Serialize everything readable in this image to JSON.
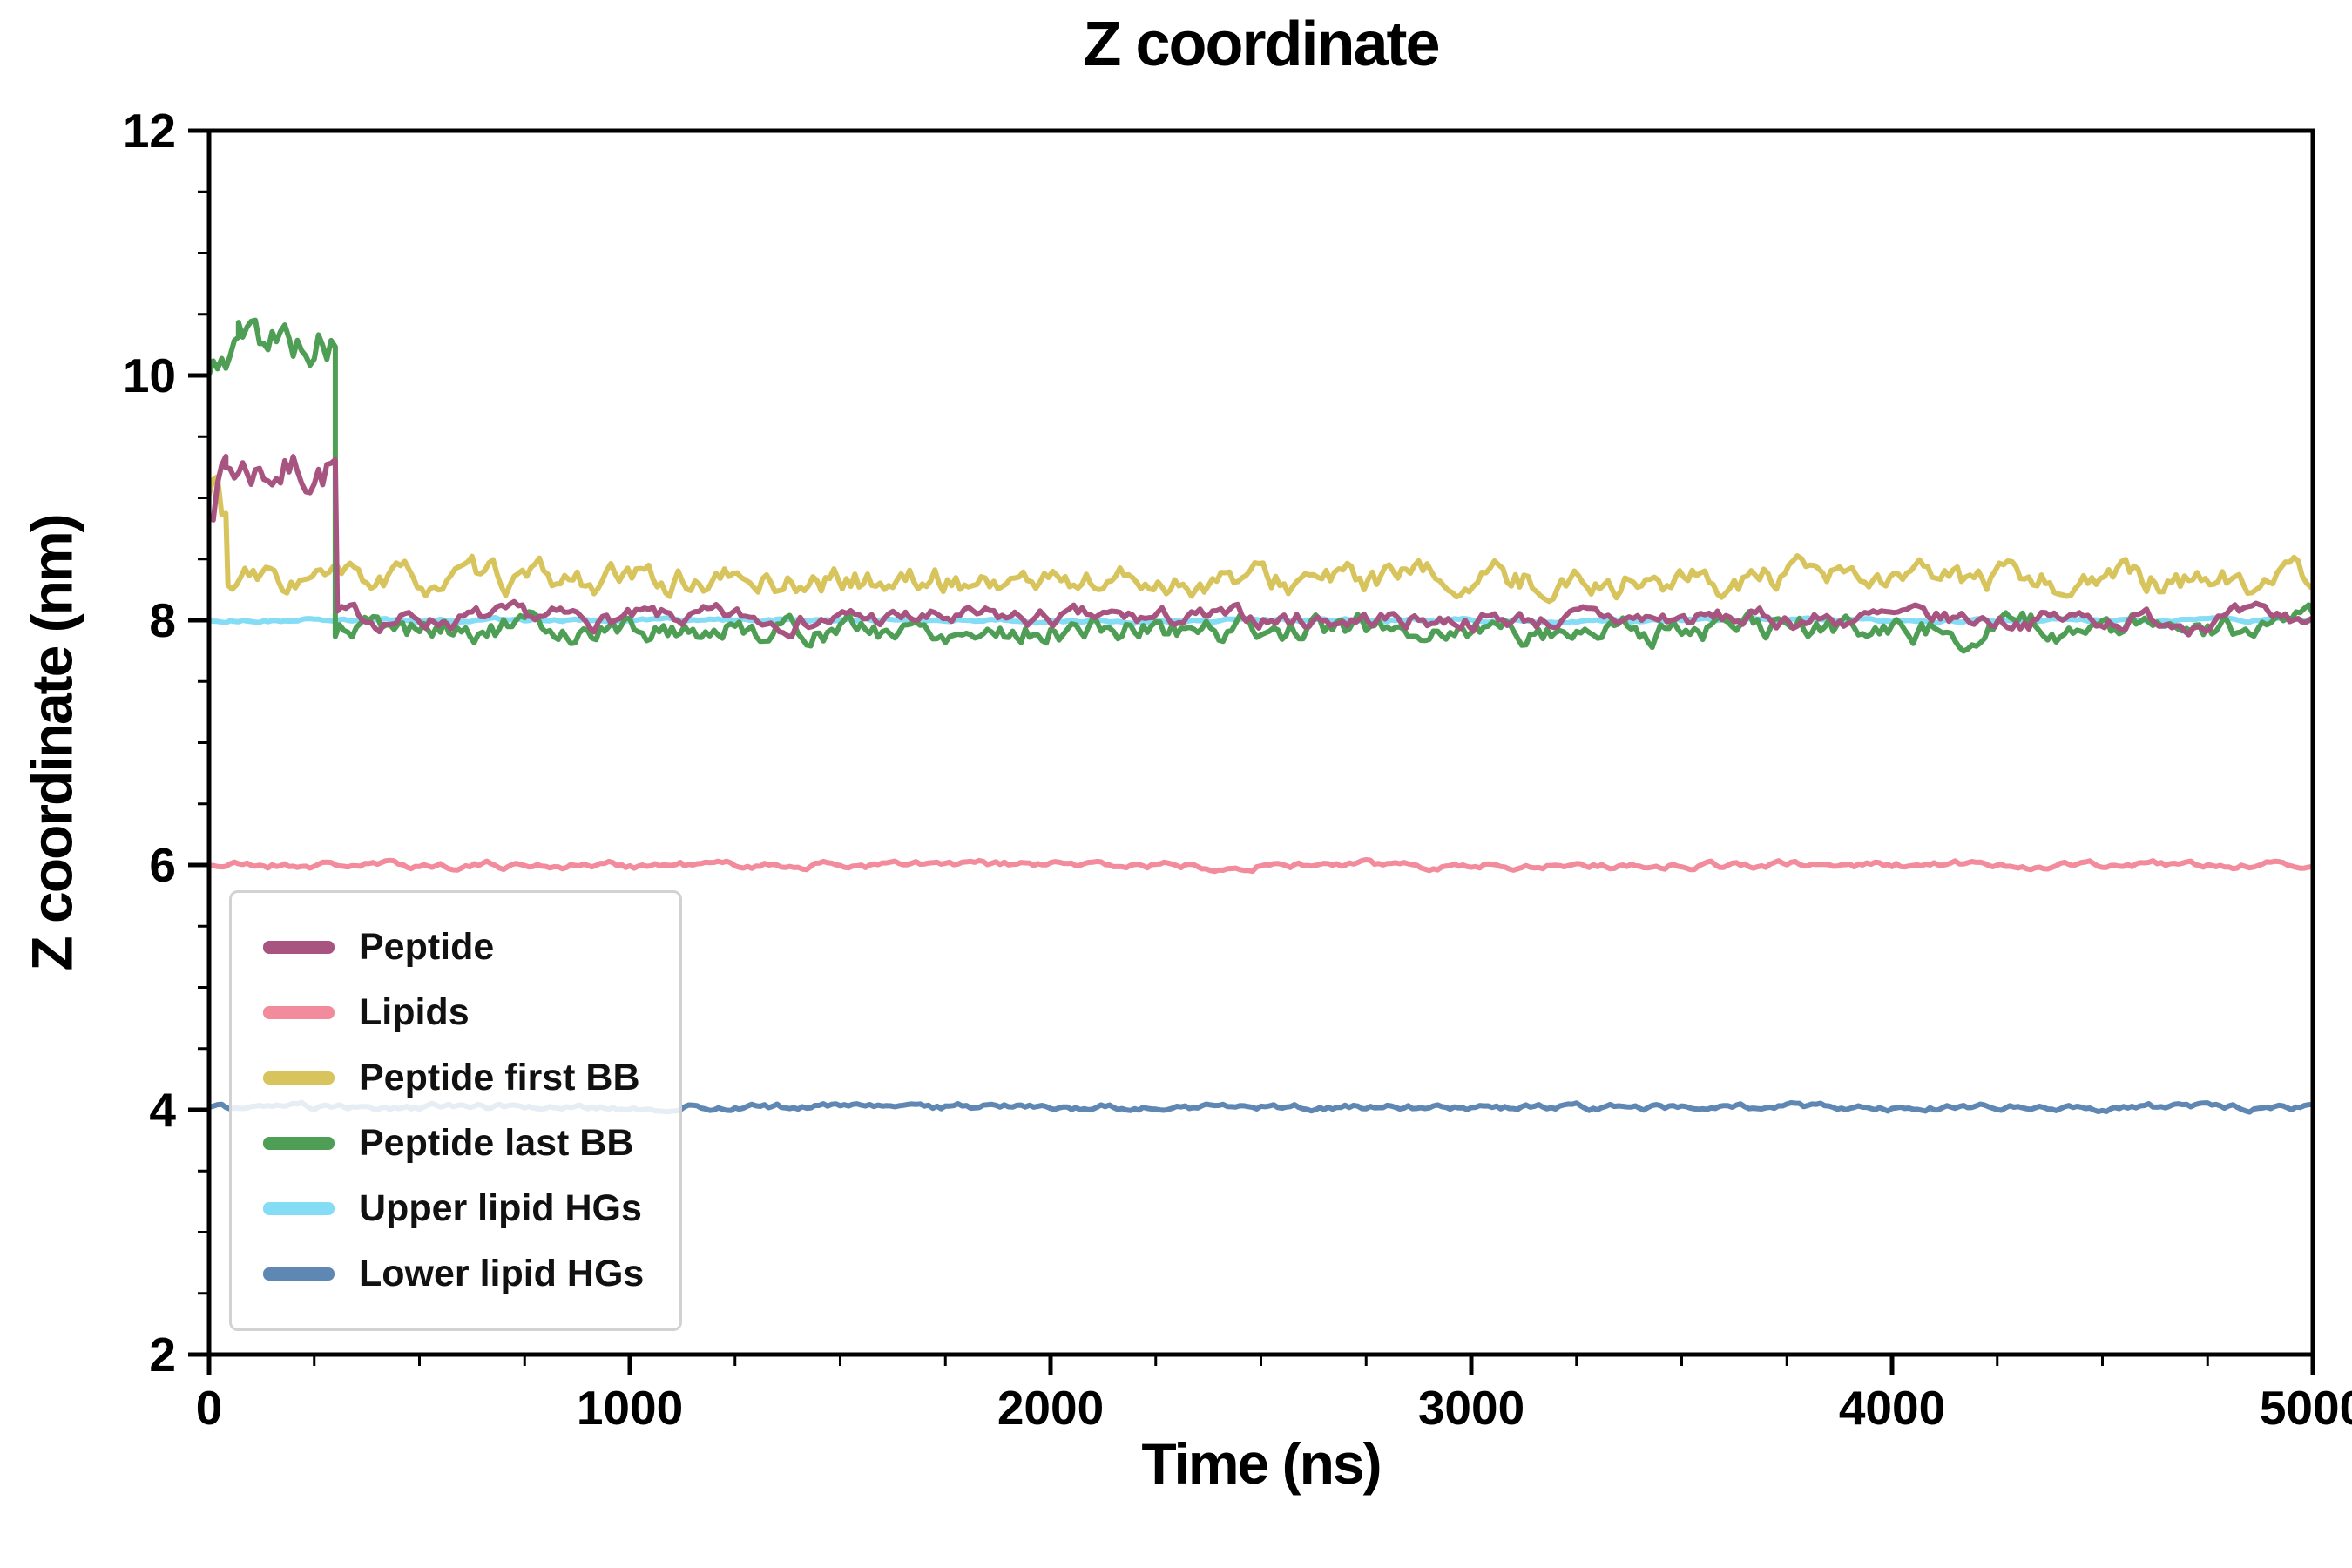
{
  "chart_data": {
    "type": "line",
    "title": "Z coordinate",
    "xlabel": "Time (ns)",
    "ylabel": "Z coordinate (nm)",
    "xlim": [
      0,
      5000
    ],
    "ylim": [
      2,
      12
    ],
    "x_ticks": [
      0,
      1000,
      2000,
      3000,
      4000,
      5000
    ],
    "x_tick_labels": [
      "0",
      "1000",
      "2000",
      "3000",
      "4000",
      "5000"
    ],
    "y_ticks": [
      2,
      4,
      6,
      8,
      10,
      12
    ],
    "y_tick_labels": [
      "2",
      "4",
      "6",
      "8",
      "10",
      "12"
    ],
    "x_minor_step": 250,
    "y_minor_step": 0.5,
    "grid": false,
    "background_color": "#ffffff",
    "axis_color": "#000000",
    "line_width": 6,
    "sample_step_ns": 10,
    "legend": {
      "position": "lower-left",
      "entries": [
        "Peptide",
        "Lipids",
        "Peptide first BB",
        "Peptide last BB",
        "Upper lipid HGs",
        "Lower lipid HGs"
      ]
    },
    "draw_order": [
      "Upper lipid HGs",
      "Lower lipid HGs",
      "Lipids",
      "Peptide first BB",
      "Peptide last BB",
      "Peptide"
    ],
    "series": [
      {
        "name": "Peptide",
        "color": "#a85480",
        "seed": 7,
        "segments": [
          {
            "t_start": 0,
            "t_end": 40,
            "mean_start": 9.0,
            "mean_end": 9.3,
            "noise": 0.18
          },
          {
            "t_start": 40,
            "t_end": 305,
            "mean": 9.25,
            "noise": 0.17
          },
          {
            "t_start": 305,
            "t_end": 5000,
            "mean": 8.01,
            "noise": 0.065
          }
        ],
        "summary": "Fluctuates around 9.2-9.3 nm (range ~8.9-9.6) for the first ~300 ns, then drops sharply to ~8.0 nm and stays flat with small fluctuations out to 5000 ns"
      },
      {
        "name": "Lipids",
        "color": "#f28b9b",
        "seed": 21,
        "segments": [
          {
            "t_start": 0,
            "t_end": 5000,
            "mean": 6.0,
            "noise": 0.025
          }
        ],
        "summary": "Flat at ~6.0 nm for the whole 0-5000 ns trajectory"
      },
      {
        "name": "Peptide first BB",
        "color": "#d8c45c",
        "seed": 33,
        "segments": [
          {
            "t_start": 0,
            "t_end": 45,
            "mean": 9.0,
            "noise": 0.3
          },
          {
            "t_start": 45,
            "t_end": 5000,
            "mean": 8.32,
            "noise": 0.1
          }
        ],
        "summary": "Brief excursion near 9-9.5 nm in the first ~50 ns, then flat around ~8.3 nm (range ~8.1-8.6) out to 5000 ns"
      },
      {
        "name": "Peptide last BB",
        "color": "#4f9e55",
        "seed": 5,
        "segments": [
          {
            "t_start": 0,
            "t_end": 70,
            "mean_start": 9.95,
            "mean_end": 10.3,
            "noise": 0.16
          },
          {
            "t_start": 70,
            "t_end": 300,
            "mean": 10.3,
            "noise": 0.17
          },
          {
            "t_start": 300,
            "t_end": 5000,
            "mean": 7.93,
            "noise": 0.09
          }
        ],
        "summary": "Starts ~10 nm, fluctuates around 10.2-10.5 (peaks ~10.6) until ~300 ns, then drops sharply to ~7.9 nm and stays flat out to 5000 ns"
      },
      {
        "name": "Upper lipid HGs",
        "color": "#84dcf5",
        "seed": 50,
        "segments": [
          {
            "t_start": 0,
            "t_end": 5000,
            "mean": 8.0,
            "noise": 0.012
          }
        ],
        "summary": "Flat at ~8.0 nm for the whole trajectory, mostly hidden behind the peptide traces after ~300 ns"
      },
      {
        "name": "Lower lipid HGs",
        "color": "#5f87b4",
        "seed": 61,
        "segments": [
          {
            "t_start": 0,
            "t_end": 5000,
            "mean": 4.02,
            "noise": 0.022
          }
        ],
        "summary": "Flat at ~4.0 nm for the whole trajectory"
      }
    ]
  }
}
